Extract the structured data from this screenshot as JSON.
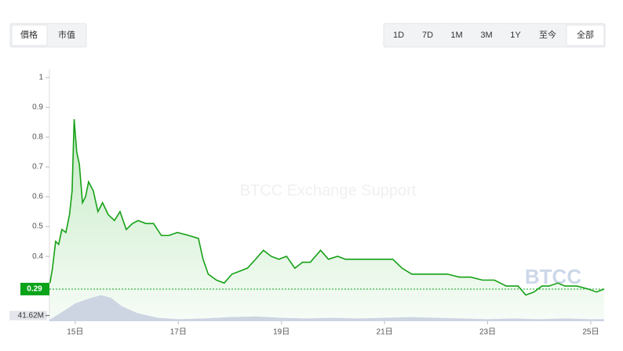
{
  "controls": {
    "toggles": [
      "價格",
      "市值"
    ],
    "active_toggle_index": 0,
    "ranges": [
      "1D",
      "7D",
      "1M",
      "3M",
      "1Y",
      "至今",
      "全部"
    ],
    "active_range_index": 6
  },
  "chart_data": {
    "type": "line",
    "watermark": "BTCC Exchange Support",
    "logo_text": "BTCC",
    "xlim": [
      14.5,
      25.26
    ],
    "xticks": [
      {
        "value": 15,
        "label": "15日"
      },
      {
        "value": 17,
        "label": "17日"
      },
      {
        "value": 19,
        "label": "19日"
      },
      {
        "value": 21,
        "label": "21日"
      },
      {
        "value": 23,
        "label": "23日"
      },
      {
        "value": 25,
        "label": "25日"
      }
    ],
    "ylim": [
      0.182,
      1.029
    ],
    "yticks": [
      0.4,
      0.5,
      0.6,
      0.7,
      0.8,
      0.9,
      1
    ],
    "y2lim": [
      0,
      400000000
    ],
    "y2ticks": [
      {
        "value": 41620000,
        "label": "41.62M"
      }
    ],
    "current_price": 0.29,
    "current_price_color": "#0aa31a",
    "series": [
      {
        "color": "#16a116",
        "x": [
          14.51,
          14.56,
          14.62,
          14.68,
          14.74,
          14.82,
          14.89,
          14.94,
          14.98,
          15.03,
          15.08,
          15.14,
          15.2,
          15.26,
          15.35,
          15.44,
          15.53,
          15.64,
          15.76,
          15.87,
          15.99,
          16.11,
          16.22,
          16.37,
          16.52,
          16.67,
          16.82,
          16.98,
          17.2,
          17.39,
          17.48,
          17.58,
          17.74,
          17.89,
          18.04,
          18.19,
          18.34,
          18.5,
          18.65,
          18.8,
          18.95,
          19.1,
          19.26,
          19.41,
          19.56,
          19.76,
          19.91,
          20.09,
          20.24,
          20.47,
          20.7,
          20.93,
          21.16,
          21.34,
          21.53,
          21.76,
          21.99,
          22.22,
          22.45,
          22.67,
          22.9,
          23.13,
          23.36,
          23.59,
          23.74,
          23.9,
          24.05,
          24.19,
          24.36,
          24.5,
          24.73,
          24.95,
          25.11,
          25.26
        ],
        "values": [
          0.31,
          0.36,
          0.45,
          0.44,
          0.49,
          0.48,
          0.54,
          0.62,
          0.86,
          0.75,
          0.71,
          0.58,
          0.6,
          0.65,
          0.62,
          0.55,
          0.58,
          0.54,
          0.52,
          0.55,
          0.49,
          0.51,
          0.52,
          0.51,
          0.51,
          0.47,
          0.47,
          0.48,
          0.47,
          0.46,
          0.39,
          0.34,
          0.32,
          0.31,
          0.34,
          0.35,
          0.36,
          0.39,
          0.42,
          0.4,
          0.39,
          0.4,
          0.36,
          0.38,
          0.38,
          0.42,
          0.39,
          0.4,
          0.39,
          0.39,
          0.39,
          0.39,
          0.39,
          0.36,
          0.34,
          0.34,
          0.34,
          0.34,
          0.33,
          0.33,
          0.32,
          0.32,
          0.3,
          0.3,
          0.27,
          0.28,
          0.3,
          0.3,
          0.31,
          0.3,
          0.3,
          0.29,
          0.28,
          0.29
        ]
      },
      {
        "color": "#cdd4e2",
        "axis": "y2",
        "x": [
          14.5,
          14.8,
          15.0,
          15.3,
          15.5,
          15.7,
          15.9,
          16.2,
          16.6,
          17.0,
          17.5,
          18.0,
          18.5,
          19.0,
          19.5,
          20.0,
          20.5,
          21.0,
          21.5,
          22.0,
          22.5,
          23.0,
          23.5,
          24.0,
          24.5,
          25.0,
          25.26
        ],
        "values": [
          10000000,
          80000000,
          130000000,
          170000000,
          190000000,
          170000000,
          110000000,
          60000000,
          25000000,
          15000000,
          20000000,
          30000000,
          35000000,
          25000000,
          20000000,
          25000000,
          20000000,
          25000000,
          30000000,
          25000000,
          20000000,
          15000000,
          20000000,
          15000000,
          20000000,
          15000000,
          15000000
        ]
      }
    ]
  }
}
